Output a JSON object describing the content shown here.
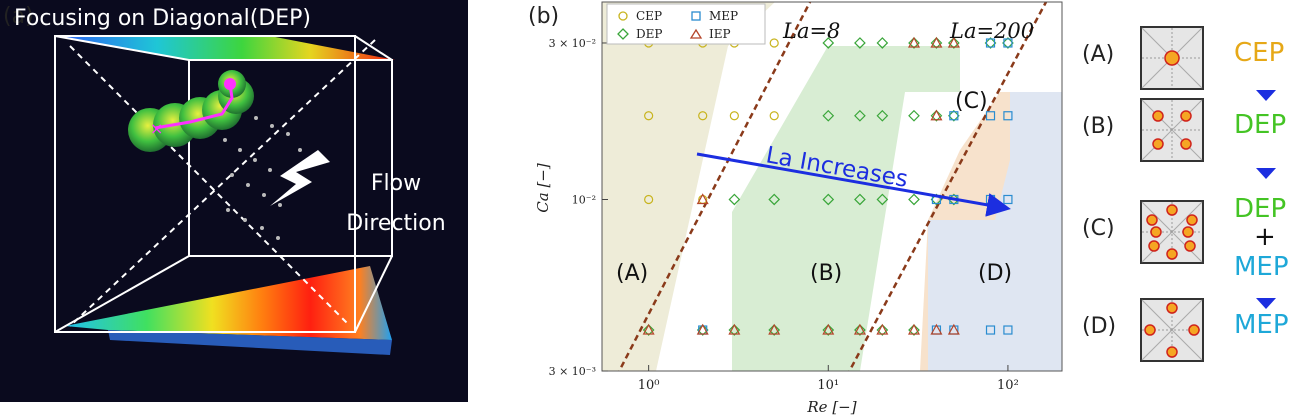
{
  "panel_labels": {
    "a": "(a)",
    "b": "(b)"
  },
  "panel_a": {
    "title": "Focusing on Diagonal(DEP)",
    "flow_line1": "Flow",
    "flow_line2": "Direction"
  },
  "chart_data": {
    "type": "scatter",
    "xlabel": "Re [−]",
    "ylabel": "Ca [−]",
    "x_scale": "log",
    "y_scale": "log",
    "xlim": [
      0.55,
      200
    ],
    "ylim": [
      0.003,
      0.04
    ],
    "x_ticks": [
      {
        "v": 1,
        "label": "10⁰"
      },
      {
        "v": 10,
        "label": "10¹"
      },
      {
        "v": 100,
        "label": "10²"
      }
    ],
    "y_ticks": [
      {
        "v": 0.003,
        "label": "3 × 10⁻³"
      },
      {
        "v": 0.01,
        "label": "10⁻²"
      },
      {
        "v": 0.03,
        "label": "3 × 10⁻²"
      }
    ],
    "legend": [
      "CEP",
      "MEP",
      "DEP",
      "IEP"
    ],
    "legend_position": "top-left",
    "colors": {
      "CEP": "#c8b41e",
      "DEP": "#3aa63a",
      "MEP": "#2a8cd0",
      "IEP": "#b5452a"
    },
    "series": [
      {
        "name": "CEP",
        "marker": "circle",
        "points": [
          [
            1,
            0.03
          ],
          [
            2,
            0.03
          ],
          [
            3,
            0.03
          ],
          [
            5,
            0.03
          ],
          [
            1,
            0.018
          ],
          [
            2,
            0.018
          ],
          [
            3,
            0.018
          ],
          [
            5,
            0.018
          ],
          [
            1,
            0.01
          ],
          [
            2,
            0.01
          ]
        ]
      },
      {
        "name": "DEP",
        "marker": "diamond",
        "points": [
          [
            10,
            0.03
          ],
          [
            15,
            0.03
          ],
          [
            20,
            0.03
          ],
          [
            10,
            0.018
          ],
          [
            15,
            0.018
          ],
          [
            20,
            0.018
          ],
          [
            30,
            0.018
          ],
          [
            3,
            0.01
          ],
          [
            5,
            0.01
          ],
          [
            10,
            0.01
          ],
          [
            15,
            0.01
          ],
          [
            20,
            0.01
          ],
          [
            30,
            0.01
          ],
          [
            40,
            0.01
          ],
          [
            1,
            0.004
          ],
          [
            3,
            0.004
          ],
          [
            5,
            0.004
          ],
          [
            10,
            0.004
          ],
          [
            15,
            0.004
          ],
          [
            20,
            0.004
          ],
          [
            30,
            0.004
          ],
          [
            30,
            0.03
          ],
          [
            40,
            0.03
          ],
          [
            50,
            0.03
          ],
          [
            40,
            0.018
          ],
          [
            50,
            0.018
          ],
          [
            50,
            0.01
          ],
          [
            2,
            0.004
          ],
          [
            80,
            0.03
          ],
          [
            100,
            0.03
          ]
        ]
      },
      {
        "name": "MEP",
        "marker": "square",
        "points": [
          [
            80,
            0.03
          ],
          [
            100,
            0.03
          ],
          [
            50,
            0.018
          ],
          [
            80,
            0.018
          ],
          [
            100,
            0.018
          ],
          [
            40,
            0.01
          ],
          [
            50,
            0.01
          ],
          [
            80,
            0.01
          ],
          [
            100,
            0.01
          ],
          [
            2,
            0.004
          ],
          [
            40,
            0.004
          ],
          [
            50,
            0.004
          ],
          [
            80,
            0.004
          ],
          [
            100,
            0.004
          ]
        ]
      },
      {
        "name": "IEP",
        "marker": "triangle",
        "points": [
          [
            30,
            0.03
          ],
          [
            40,
            0.03
          ],
          [
            50,
            0.03
          ],
          [
            2,
            0.01
          ],
          [
            40,
            0.018
          ],
          [
            1,
            0.004
          ],
          [
            2,
            0.004
          ],
          [
            3,
            0.004
          ],
          [
            5,
            0.004
          ],
          [
            10,
            0.004
          ],
          [
            15,
            0.004
          ],
          [
            20,
            0.004
          ],
          [
            30,
            0.004
          ],
          [
            40,
            0.004
          ],
          [
            50,
            0.004
          ]
        ]
      }
    ],
    "regions": [
      {
        "label": "(A)",
        "color": "#eeecd8"
      },
      {
        "label": "(B)",
        "color": "#d8edd3"
      },
      {
        "label": "(C)",
        "color": "#f7e2cc"
      },
      {
        "label": "(D)",
        "color": "#dfe6f2"
      }
    ],
    "lines": [
      {
        "label": "La=8"
      },
      {
        "label": "La=200"
      }
    ],
    "annotation": "La Increases"
  },
  "right_panel": {
    "items": [
      {
        "label": "(A)",
        "name": "CEP",
        "name_color": "#e6a817"
      },
      {
        "label": "(B)",
        "name": "DEP",
        "name_color": "#44c424"
      },
      {
        "label": "(C)",
        "name": "DEP",
        "name_color": "#44c424",
        "plus": "+",
        "name2": "MEP",
        "name2_color": "#1ea8d8"
      },
      {
        "label": "(D)",
        "name": "MEP",
        "name_color": "#1ea8d8"
      }
    ],
    "arrow_color": "#1c2ee0"
  }
}
